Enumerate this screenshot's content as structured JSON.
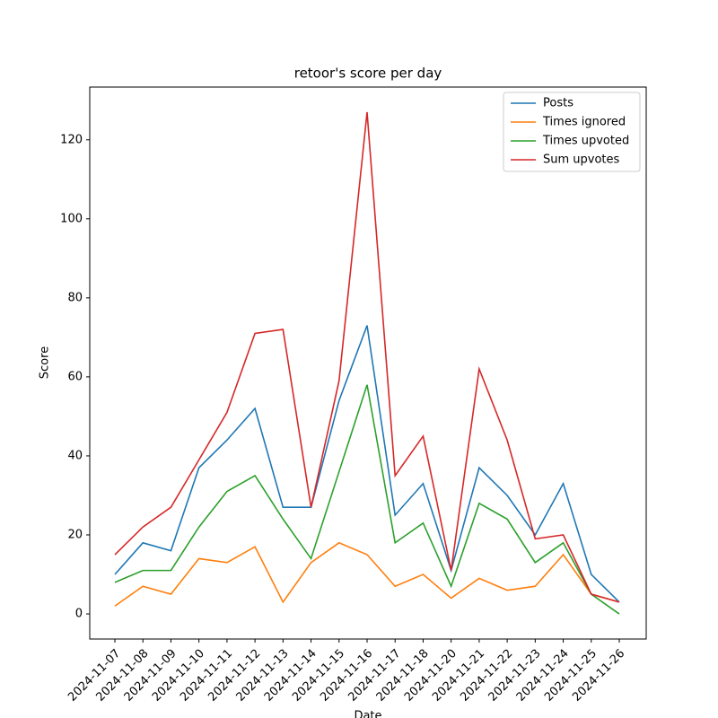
{
  "chart_data": {
    "type": "line",
    "title": "retoor's score per day",
    "xlabel": "Date",
    "ylabel": "Score",
    "categories": [
      "2024-11-07",
      "2024-11-08",
      "2024-11-09",
      "2024-11-10",
      "2024-11-11",
      "2024-11-12",
      "2024-11-13",
      "2024-11-14",
      "2024-11-15",
      "2024-11-16",
      "2024-11-17",
      "2024-11-18",
      "2024-11-20",
      "2024-11-21",
      "2024-11-22",
      "2024-11-23",
      "2024-11-24",
      "2024-11-25",
      "2024-11-26"
    ],
    "series": [
      {
        "name": "Posts",
        "color": "#1f77b4",
        "values": [
          10,
          18,
          16,
          37,
          44,
          52,
          27,
          27,
          54,
          73,
          25,
          33,
          11,
          37,
          30,
          20,
          33,
          10,
          3
        ]
      },
      {
        "name": "Times ignored",
        "color": "#ff7f0e",
        "values": [
          2,
          7,
          5,
          14,
          13,
          17,
          3,
          13,
          18,
          15,
          7,
          10,
          4,
          9,
          6,
          7,
          15,
          5,
          3
        ]
      },
      {
        "name": "Times upvoted",
        "color": "#2ca02c",
        "values": [
          8,
          11,
          11,
          22,
          31,
          35,
          24,
          14,
          36,
          58,
          18,
          23,
          7,
          28,
          24,
          13,
          18,
          5,
          0
        ]
      },
      {
        "name": "Sum upvotes",
        "color": "#d62728",
        "values": [
          15,
          22,
          27,
          39,
          51,
          71,
          72,
          27,
          59,
          127,
          35,
          45,
          11,
          62,
          44,
          19,
          20,
          5,
          3
        ]
      }
    ],
    "ylim": [
      -6.35,
      133.35
    ],
    "yticks": [
      0,
      20,
      40,
      60,
      80,
      100,
      120
    ],
    "grid": false,
    "legend": "upper right"
  }
}
